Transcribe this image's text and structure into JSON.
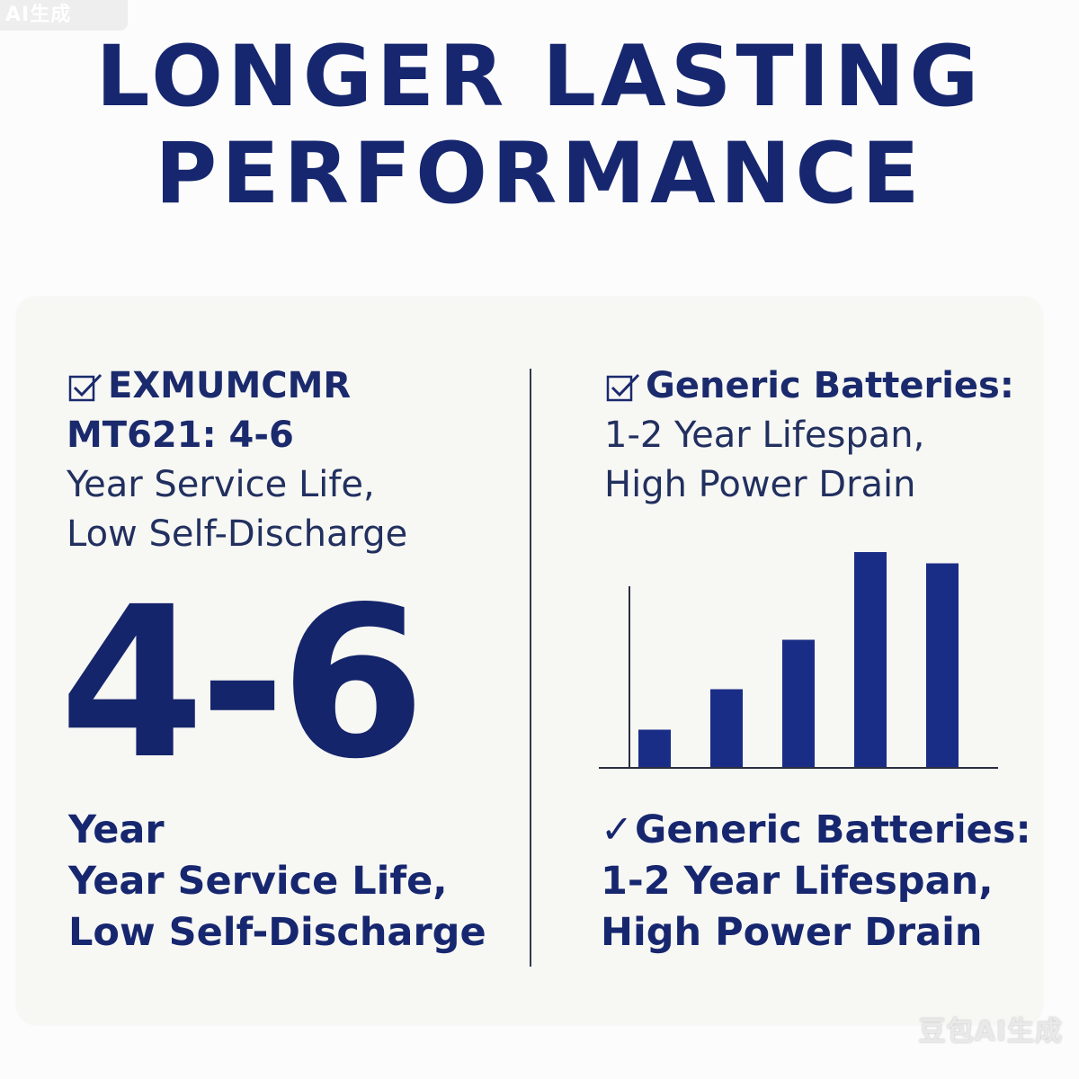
{
  "watermark_top": "AI生成",
  "watermark_bottom": "豆包AI生成",
  "headline": {
    "line1": "LONGER LASTING",
    "line2": "PERFORMANCE"
  },
  "left": {
    "brand": "EXMUMCMR",
    "model_life": "MT621: 4-6",
    "desc_line1": "Year Service Life,",
    "desc_line2": "Low Self-Discharge",
    "big_value": "4-6",
    "footer_line1": "Year",
    "footer_line2": "Year Service Life,",
    "footer_line3": "Low Self-Discharge"
  },
  "right": {
    "title": "Generic Batteries:",
    "desc_line1": "1-2 Year Lifespan,",
    "desc_line2": "High Power Drain",
    "footer_tick": "✓",
    "footer_line1": "Generic Batteries:",
    "footer_line2": "1-2 Year Lifespan,",
    "footer_line3": "High Power Drain"
  },
  "icons": {
    "checkbox": "checkbox-checked-icon"
  },
  "colors": {
    "primary": "#17276f",
    "bar": "#1a2d86",
    "card": "#f7f7f4"
  },
  "chart_data": {
    "type": "bar",
    "categories": [
      "",
      "",
      "",
      "",
      ""
    ],
    "values": [
      0.17,
      0.35,
      0.57,
      0.96,
      0.91
    ],
    "ylim": [
      0,
      1
    ],
    "title": "",
    "xlabel": "",
    "ylabel": "",
    "grid": false,
    "axis_tick_labels": false
  }
}
